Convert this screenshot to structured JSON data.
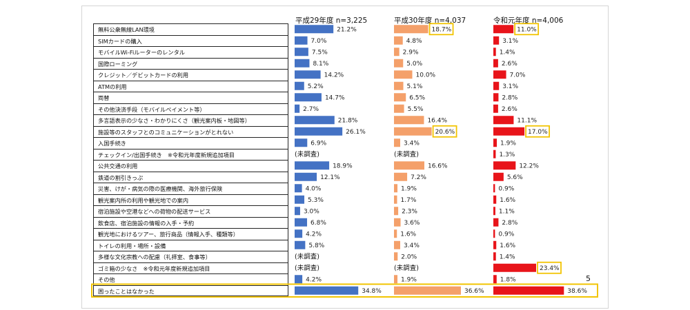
{
  "chart_data": {
    "type": "bar",
    "orientation": "horizontal",
    "categories": [
      "無料公衆無線LAN環境",
      "SIMカードの購入",
      "モバイルWi-Fiルーターのレンタル",
      "国際ローミング",
      "クレジット／デビットカードの利用",
      "ATMの利用",
      "両替",
      "その他決済手段（モバイルペイメント等）",
      "多言語表示の少なさ・わかりにくさ（観光案内板・地図等）",
      "施設等のスタッフとのコミュニケーションがとれない",
      "入国手続き",
      "チェックイン/出国手続き　※令和元年度新規追加項目",
      "公共交通の利用",
      "鉄道の割引きっぷ",
      "災害、けが・病気の際の医療機関、海外旅行保険",
      "観光案内所の利用や観光地での案内",
      "宿泊施設や空港などへの荷物の配送サービス",
      "飲食店、宿泊施設の情報の入手・予約",
      "観光地におけるツアー、旅行商品（情報入手、種類等）",
      "トイレの利用・場所・設備",
      "多様な文化宗教への配慮（礼拝室、食事等）",
      "ゴミ箱の少なさ　※令和元年度新規追加項目",
      "その他",
      "困ったことはなかった"
    ],
    "series": [
      {
        "name": "平成29年度 n=3,225",
        "color": "#4472c4",
        "values": [
          21.2,
          7.0,
          7.5,
          8.1,
          14.2,
          5.2,
          14.7,
          2.7,
          21.8,
          26.1,
          6.9,
          null,
          18.9,
          12.1,
          4.0,
          5.3,
          3.0,
          6.8,
          4.2,
          5.8,
          null,
          null,
          4.2,
          34.8
        ],
        "labels": [
          "21.2%",
          "7.0%",
          "7.5%",
          "8.1%",
          "14.2%",
          "5.2%",
          "14.7%",
          "2.7%",
          "21.8%",
          "26.1%",
          "6.9%",
          "(未調査)",
          "18.9%",
          "12.1%",
          "4.0%",
          "5.3%",
          "3.0%",
          "6.8%",
          "4.2%",
          "5.8%",
          "(未調査)",
          "(未調査)",
          "4.2%",
          "34.8%"
        ]
      },
      {
        "name": "平成30年度 n=4,037",
        "color": "#f4a06a",
        "values": [
          18.7,
          4.8,
          2.9,
          5.0,
          10.0,
          5.1,
          6.5,
          5.5,
          16.4,
          20.6,
          3.4,
          null,
          16.6,
          7.2,
          1.9,
          1.7,
          2.3,
          3.6,
          1.6,
          3.4,
          2.0,
          null,
          1.9,
          36.6
        ],
        "labels": [
          "18.7%",
          "4.8%",
          "2.9%",
          "5.0%",
          "10.0%",
          "5.1%",
          "6.5%",
          "5.5%",
          "16.4%",
          "20.6%",
          "3.4%",
          "(未調査)",
          "16.6%",
          "7.2%",
          "1.9%",
          "1.7%",
          "2.3%",
          "3.6%",
          "1.6%",
          "3.4%",
          "2.0%",
          "(未調査)",
          "1.9%",
          "36.6%"
        ]
      },
      {
        "name": "令和元年度 n=4,006",
        "color": "#e8141a",
        "values": [
          11.0,
          3.1,
          1.4,
          2.6,
          7.0,
          3.1,
          2.8,
          2.6,
          11.1,
          17.0,
          1.9,
          1.3,
          12.2,
          5.6,
          0.9,
          1.6,
          1.1,
          2.8,
          0.9,
          1.6,
          1.4,
          23.4,
          1.8,
          38.6
        ],
        "labels": [
          "11.0%",
          "3.1%",
          "1.4%",
          "2.6%",
          "7.0%",
          "3.1%",
          "2.8%",
          "2.6%",
          "11.1%",
          "17.0%",
          "1.9%",
          "1.3%",
          "12.2%",
          "5.6%",
          "0.9%",
          "1.6%",
          "1.1%",
          "2.8%",
          "0.9%",
          "1.6%",
          "1.4%",
          "23.4%",
          "1.8%",
          "38.6%"
        ]
      }
    ],
    "highlighted": [
      {
        "series": 1,
        "category": 0
      },
      {
        "series": 2,
        "category": 0
      },
      {
        "series": 1,
        "category": 9
      },
      {
        "series": 2,
        "category": 9
      },
      {
        "series": 2,
        "category": 21
      }
    ],
    "highlighted_row": 23,
    "highlight_color": "#f2c400",
    "not_surveyed_text": "(未調査)"
  },
  "page_number": "5"
}
